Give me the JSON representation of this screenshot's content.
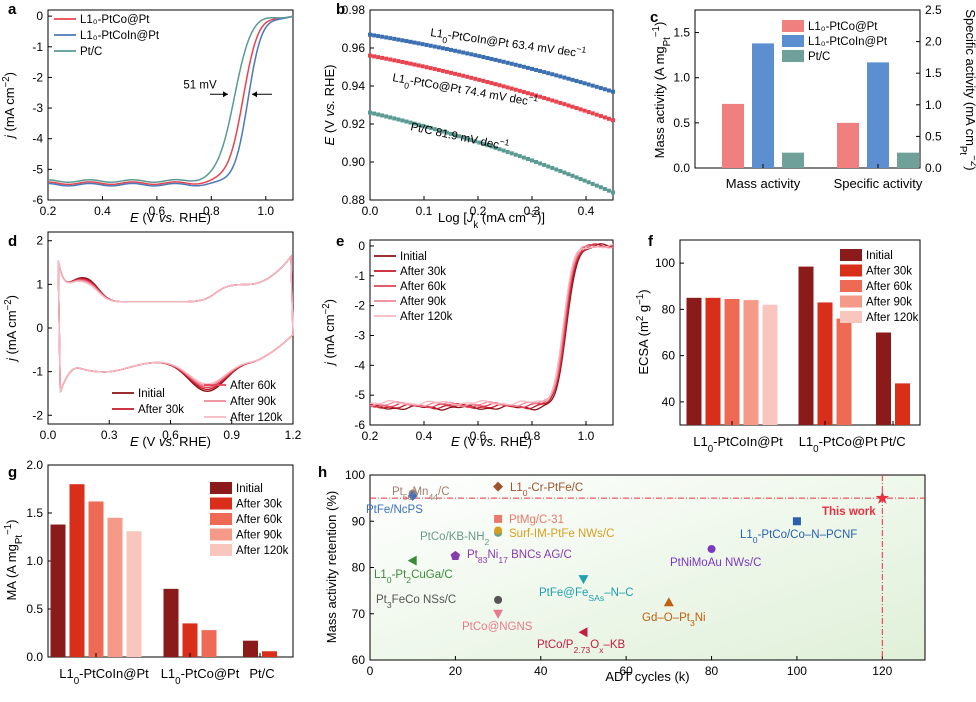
{
  "chart_data": [
    {
      "panel": "a",
      "type": "line",
      "xlabel": "E (V vs. RHE)",
      "ylabel": "j (mA cm⁻²)",
      "xlim": [
        0.2,
        1.1
      ],
      "ylim": [
        -6,
        0.2
      ],
      "xticks": [
        "0.2",
        "0.4",
        "0.6",
        "0.8",
        "1.0"
      ],
      "yticks": [
        "-6",
        "-5",
        "-4",
        "-3",
        "-2",
        "-1",
        "0"
      ],
      "legend": "top-left",
      "series": [
        {
          "name": "L1₀-PtCo@Pt",
          "color": "#e8444f",
          "jlim": -5.45,
          "e_half": 0.915,
          "k": 0.028
        },
        {
          "name": "L1₀-PtCoIn@Pt",
          "color": "#4a78b8",
          "jlim": -5.5,
          "e_half": 0.934,
          "k": 0.026
        },
        {
          "name": "Pt/C",
          "color": "#5a9a92",
          "jlim": -5.38,
          "e_half": 0.883,
          "k": 0.03
        }
      ],
      "annotation": "51 mV"
    },
    {
      "panel": "b",
      "type": "scatter",
      "xlabel": "Log [Jk (mA cm⁻²)]",
      "ylabel": "E (V vs. RHE)",
      "xlim": [
        0,
        0.45
      ],
      "ylim": [
        0.88,
        0.98
      ],
      "xticks": [
        "0.0",
        "0.1",
        "0.2",
        "0.3",
        "0.4"
      ],
      "yticks": [
        "0.88",
        "0.90",
        "0.92",
        "0.94",
        "0.96",
        "0.98"
      ],
      "series": [
        {
          "name": "L1₀-PtCoIn@Pt 63.4 mV dec⁻¹",
          "color": "#3a6fb0",
          "y0": 0.967,
          "y1": 0.937
        },
        {
          "name": "L1₀-PtCo@Pt 74.4 mV dec⁻¹",
          "color": "#e8444f",
          "y0": 0.956,
          "y1": 0.922
        },
        {
          "name": "Pt/C 81.9 mV dec⁻¹",
          "color": "#5a9a92",
          "y0": 0.926,
          "y1": 0.884
        }
      ]
    },
    {
      "panel": "c",
      "type": "bar",
      "categories": [
        "Mass activity",
        "Specific activity"
      ],
      "ylabel": "Mass activity (A mgPt⁻¹)",
      "y2label": "Specific activity (mA cmPt⁻²)",
      "ylim": [
        0,
        1.75
      ],
      "y2lim": [
        0,
        2.5
      ],
      "yticks": [
        "0.0",
        "0.5",
        "1.0",
        "1.5"
      ],
      "y2ticks": [
        "0.0",
        "0.5",
        "1.0",
        "1.5",
        "2.0",
        "2.5"
      ],
      "legend": "top-right",
      "series": [
        {
          "name": "L1₀-PtCo@Pt",
          "color": "#f08080",
          "values": [
            0.71,
            0.5
          ]
        },
        {
          "name": "L1₀-PtCoIn@Pt",
          "color": "#5b8fd0",
          "values": [
            1.38,
            1.17
          ]
        },
        {
          "name": "Pt/C",
          "color": "#6fa09a",
          "values": [
            0.17,
            0.17
          ]
        }
      ]
    },
    {
      "panel": "d",
      "type": "line",
      "xlabel": "E (V vs. RHE)",
      "ylabel": "j (mA cm⁻²)",
      "xlim": [
        0,
        1.2
      ],
      "ylim": [
        -2.2,
        2.2
      ],
      "xticks": [
        "0.0",
        "0.3",
        "0.6",
        "0.9",
        "1.2"
      ],
      "yticks": [
        "-2",
        "-1",
        "0",
        "1",
        "2"
      ],
      "series": [
        {
          "name": "Initial",
          "color": "#8b0f14"
        },
        {
          "name": "After 30k",
          "color": "#c41a2a"
        },
        {
          "name": "After 60k",
          "color": "#e2435a"
        },
        {
          "name": "After 90k",
          "color": "#ee8a98"
        },
        {
          "name": "After 120k",
          "color": "#f6b8c2"
        }
      ]
    },
    {
      "panel": "e",
      "type": "line",
      "xlabel": "E (V vs. RHE)",
      "ylabel": "j (mA cm⁻²)",
      "xlim": [
        0.2,
        1.1
      ],
      "ylim": [
        -6,
        0.2
      ],
      "xticks": [
        "0.2",
        "0.4",
        "0.6",
        "0.8",
        "1.0"
      ],
      "yticks": [
        "-6",
        "-5",
        "-4",
        "-3",
        "-2",
        "-1",
        "0"
      ],
      "legend": "top-left",
      "series": [
        {
          "name": "Initial",
          "color": "#8b0f14"
        },
        {
          "name": "After 30k",
          "color": "#c41a2a"
        },
        {
          "name": "After 60k",
          "color": "#e2435a"
        },
        {
          "name": "After 90k",
          "color": "#ee8a98"
        },
        {
          "name": "After 120k",
          "color": "#f6b8c2"
        }
      ]
    },
    {
      "panel": "f",
      "type": "bar",
      "categories": [
        "L1₀-PtCoIn@Pt",
        "L1₀-PtCo@Pt",
        "Pt/C"
      ],
      "ylabel": "ECSA (m² g⁻¹)",
      "ylim": [
        30,
        110
      ],
      "yticks": [
        "40",
        "60",
        "80",
        "100"
      ],
      "legend": "top-right",
      "series": [
        {
          "name": "Initial",
          "color": "#8b1a1a",
          "values": [
            85,
            98.5,
            70
          ]
        },
        {
          "name": "After 30k",
          "color": "#d92e1a",
          "values": [
            85,
            83,
            48
          ]
        },
        {
          "name": "After 60k",
          "color": "#ef6a55",
          "values": [
            84.5,
            76,
            null
          ]
        },
        {
          "name": "After 90k",
          "color": "#f59a88",
          "values": [
            84,
            null,
            null
          ]
        },
        {
          "name": "After 120k",
          "color": "#f8c6bd",
          "values": [
            82,
            null,
            null
          ]
        }
      ]
    },
    {
      "panel": "g",
      "type": "bar",
      "categories": [
        "L1₀-PtCoIn@Pt",
        "L1₀-PtCo@Pt",
        "Pt/C"
      ],
      "ylabel": "MA (A mgPt⁻¹)",
      "ylim": [
        0,
        2.0
      ],
      "yticks": [
        "0.0",
        "0.5",
        "1.0",
        "1.5",
        "2.0"
      ],
      "legend": "top-right",
      "series": [
        {
          "name": "Initial",
          "color": "#8b1a1a",
          "values": [
            1.38,
            0.71,
            0.17
          ]
        },
        {
          "name": "After 30k",
          "color": "#d92e1a",
          "values": [
            1.8,
            0.35,
            0.06
          ]
        },
        {
          "name": "After 60k",
          "color": "#ef6a55",
          "values": [
            1.62,
            0.28,
            null
          ]
        },
        {
          "name": "After 90k",
          "color": "#f59a88",
          "values": [
            1.45,
            null,
            null
          ]
        },
        {
          "name": "After 120k",
          "color": "#f8c6bd",
          "values": [
            1.31,
            null,
            null
          ]
        }
      ]
    },
    {
      "panel": "h",
      "type": "scatter",
      "xlabel": "ADT cycles (k)",
      "ylabel": "Mass activity retention (%)",
      "xlim": [
        0,
        130
      ],
      "ylim": [
        60,
        100
      ],
      "xticks": [
        "0",
        "20",
        "40",
        "60",
        "80",
        "100",
        "120"
      ],
      "yticks": [
        "60",
        "70",
        "80",
        "90",
        "100"
      ],
      "points": [
        {
          "label": "Pt₅₆Mn₄₄/C",
          "x": 10,
          "y": 96,
          "color": "#a08070",
          "marker": "circle"
        },
        {
          "label": "PtFe/NcPS",
          "x": 10,
          "y": 95.5,
          "color": "#3a70c0",
          "marker": "diamond"
        },
        {
          "label": "L1₀-Cr-PtFe/C",
          "x": 30,
          "y": 97.5,
          "color": "#a0522d",
          "marker": "diamond"
        },
        {
          "label": "PtMg/C-31",
          "x": 30,
          "y": 90.5,
          "color": "#e87a6a",
          "marker": "square"
        },
        {
          "label": "PtCo/KB-NH₂",
          "x": 30,
          "y": 87.5,
          "color": "#6a9a8a",
          "marker": "circle"
        },
        {
          "label": "Surf-IM-PtFe NWs/C",
          "x": 30,
          "y": 88,
          "color": "#d4a020",
          "marker": "circle"
        },
        {
          "label": "Pt₈₃Ni₁₇ BNCs AG/C",
          "x": 20,
          "y": 82.5,
          "color": "#8a3ab0",
          "marker": "pentagon"
        },
        {
          "label": "L1₀-Pt₂CuGa/C",
          "x": 10,
          "y": 81.5,
          "color": "#3a8a3a",
          "marker": "triangle-left"
        },
        {
          "label": "Pt₃FeCo NSs/C",
          "x": 30,
          "y": 73,
          "color": "#555555",
          "marker": "circle"
        },
        {
          "label": "PtCo@NGNS",
          "x": 30,
          "y": 70,
          "color": "#e87a8a",
          "marker": "triangle-down"
        },
        {
          "label": "PtFe@Fe_SAs–N–C",
          "x": 50,
          "y": 77.5,
          "color": "#20a0b0",
          "marker": "triangle-down"
        },
        {
          "label": "PtCo/P₂.₇₃Oₓ–KB",
          "x": 50,
          "y": 66,
          "color": "#c02040",
          "marker": "triangle-left"
        },
        {
          "label": "Gd–O–Pt₃Ni",
          "x": 70,
          "y": 72.5,
          "color": "#c06010",
          "marker": "triangle-up"
        },
        {
          "label": "PtNiMoAu NWs/C",
          "x": 80,
          "y": 84,
          "color": "#7a3ac0",
          "marker": "circle"
        },
        {
          "label": "L1₀-PtCo/Co–N–PCNF",
          "x": 100,
          "y": 90,
          "color": "#2a60b0",
          "marker": "square"
        },
        {
          "label": "This work",
          "x": 120,
          "y": 95,
          "color": "#e83040",
          "marker": "star"
        }
      ]
    }
  ]
}
